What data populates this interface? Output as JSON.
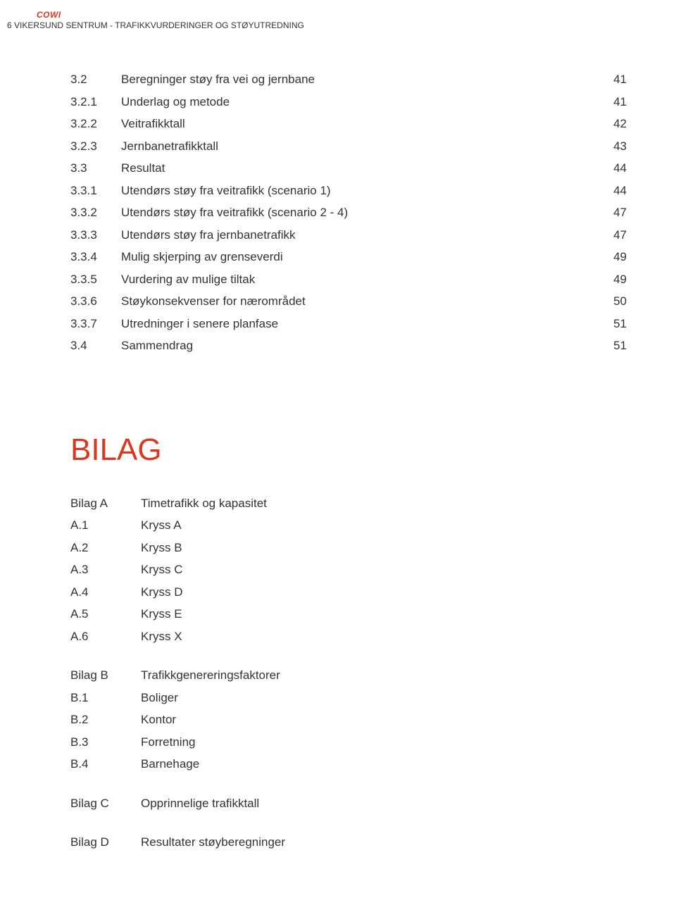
{
  "header": {
    "logo": "COWI",
    "sub": "6 VIKERSUND SENTRUM - TRAFIKKVURDERINGER OG STØYUTREDNING"
  },
  "toc": [
    {
      "level": 1,
      "num": "3.2",
      "title": "Beregninger støy fra vei og jernbane",
      "page": "41"
    },
    {
      "level": 2,
      "num": "3.2.1",
      "title": "Underlag og metode",
      "page": "41"
    },
    {
      "level": 2,
      "num": "3.2.2",
      "title": "Veitrafikktall",
      "page": "42"
    },
    {
      "level": 2,
      "num": "3.2.3",
      "title": "Jernbanetrafikktall",
      "page": "43"
    },
    {
      "level": 1,
      "num": "3.3",
      "title": "Resultat",
      "page": "44"
    },
    {
      "level": 2,
      "num": "3.3.1",
      "title": "Utendørs støy fra veitrafikk (scenario 1)",
      "page": "44"
    },
    {
      "level": 2,
      "num": "3.3.2",
      "title": "Utendørs støy fra veitrafikk (scenario 2 - 4)",
      "page": "47"
    },
    {
      "level": 2,
      "num": "3.3.3",
      "title": "Utendørs støy fra jernbanetrafikk",
      "page": "47"
    },
    {
      "level": 2,
      "num": "3.3.4",
      "title": "Mulig skjerping av grenseverdi",
      "page": "49"
    },
    {
      "level": 2,
      "num": "3.3.5",
      "title": "Vurdering av mulige tiltak",
      "page": "49"
    },
    {
      "level": 2,
      "num": "3.3.6",
      "title": "Støykonsekvenser for nærområdet",
      "page": "50"
    },
    {
      "level": 2,
      "num": "3.3.7",
      "title": "Utredninger i senere planfase",
      "page": "51"
    },
    {
      "level": 1,
      "num": "3.4",
      "title": "Sammendrag",
      "page": "51"
    }
  ],
  "bilag": {
    "heading": "BILAG",
    "groups": [
      {
        "items": [
          {
            "num": "Bilag A",
            "title": "Timetrafikk og kapasitet"
          },
          {
            "num": "A.1",
            "title": "Kryss A"
          },
          {
            "num": "A.2",
            "title": "Kryss B"
          },
          {
            "num": "A.3",
            "title": "Kryss C"
          },
          {
            "num": "A.4",
            "title": "Kryss D"
          },
          {
            "num": "A.5",
            "title": "Kryss E"
          },
          {
            "num": "A.6",
            "title": "Kryss X"
          }
        ]
      },
      {
        "items": [
          {
            "num": "Bilag B",
            "title": "Trafikkgenereringsfaktorer"
          },
          {
            "num": "B.1",
            "title": "Boliger"
          },
          {
            "num": "B.2",
            "title": "Kontor"
          },
          {
            "num": "B.3",
            "title": "Forretning"
          },
          {
            "num": "B.4",
            "title": "Barnehage"
          }
        ]
      },
      {
        "items": [
          {
            "num": "Bilag C",
            "title": "Opprinnelige trafikktall"
          }
        ]
      },
      {
        "items": [
          {
            "num": "Bilag D",
            "title": "Resultater støyberegninger"
          }
        ]
      }
    ]
  }
}
